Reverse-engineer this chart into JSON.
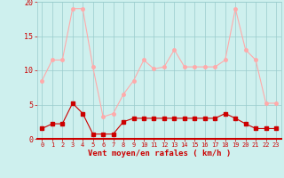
{
  "hours": [
    0,
    1,
    2,
    3,
    4,
    5,
    6,
    7,
    8,
    9,
    10,
    11,
    12,
    13,
    14,
    15,
    16,
    17,
    18,
    19,
    20,
    21,
    22,
    23
  ],
  "wind_avg": [
    1.5,
    2.2,
    2.2,
    5.2,
    3.7,
    0.7,
    0.7,
    0.7,
    2.5,
    3.0,
    3.0,
    3.0,
    3.0,
    3.0,
    3.0,
    3.0,
    3.0,
    3.0,
    3.7,
    3.0,
    2.2,
    1.5,
    1.5,
    1.5
  ],
  "wind_gust": [
    8.5,
    11.5,
    11.5,
    19.0,
    19.0,
    10.5,
    3.2,
    3.7,
    6.5,
    8.5,
    11.5,
    10.2,
    10.5,
    13.0,
    10.5,
    10.5,
    10.5,
    10.5,
    11.5,
    19.0,
    13.0,
    11.5,
    5.2,
    5.2
  ],
  "avg_color": "#cc0000",
  "gust_color": "#ffaaaa",
  "bg_color": "#cef0ee",
  "grid_color": "#99cccc",
  "xlabel": "Vent moyen/en rafales ( km/h )",
  "xlabel_color": "#cc0000",
  "tick_color": "#cc0000",
  "ylim": [
    0,
    20
  ],
  "yticks": [
    0,
    5,
    10,
    15,
    20
  ]
}
